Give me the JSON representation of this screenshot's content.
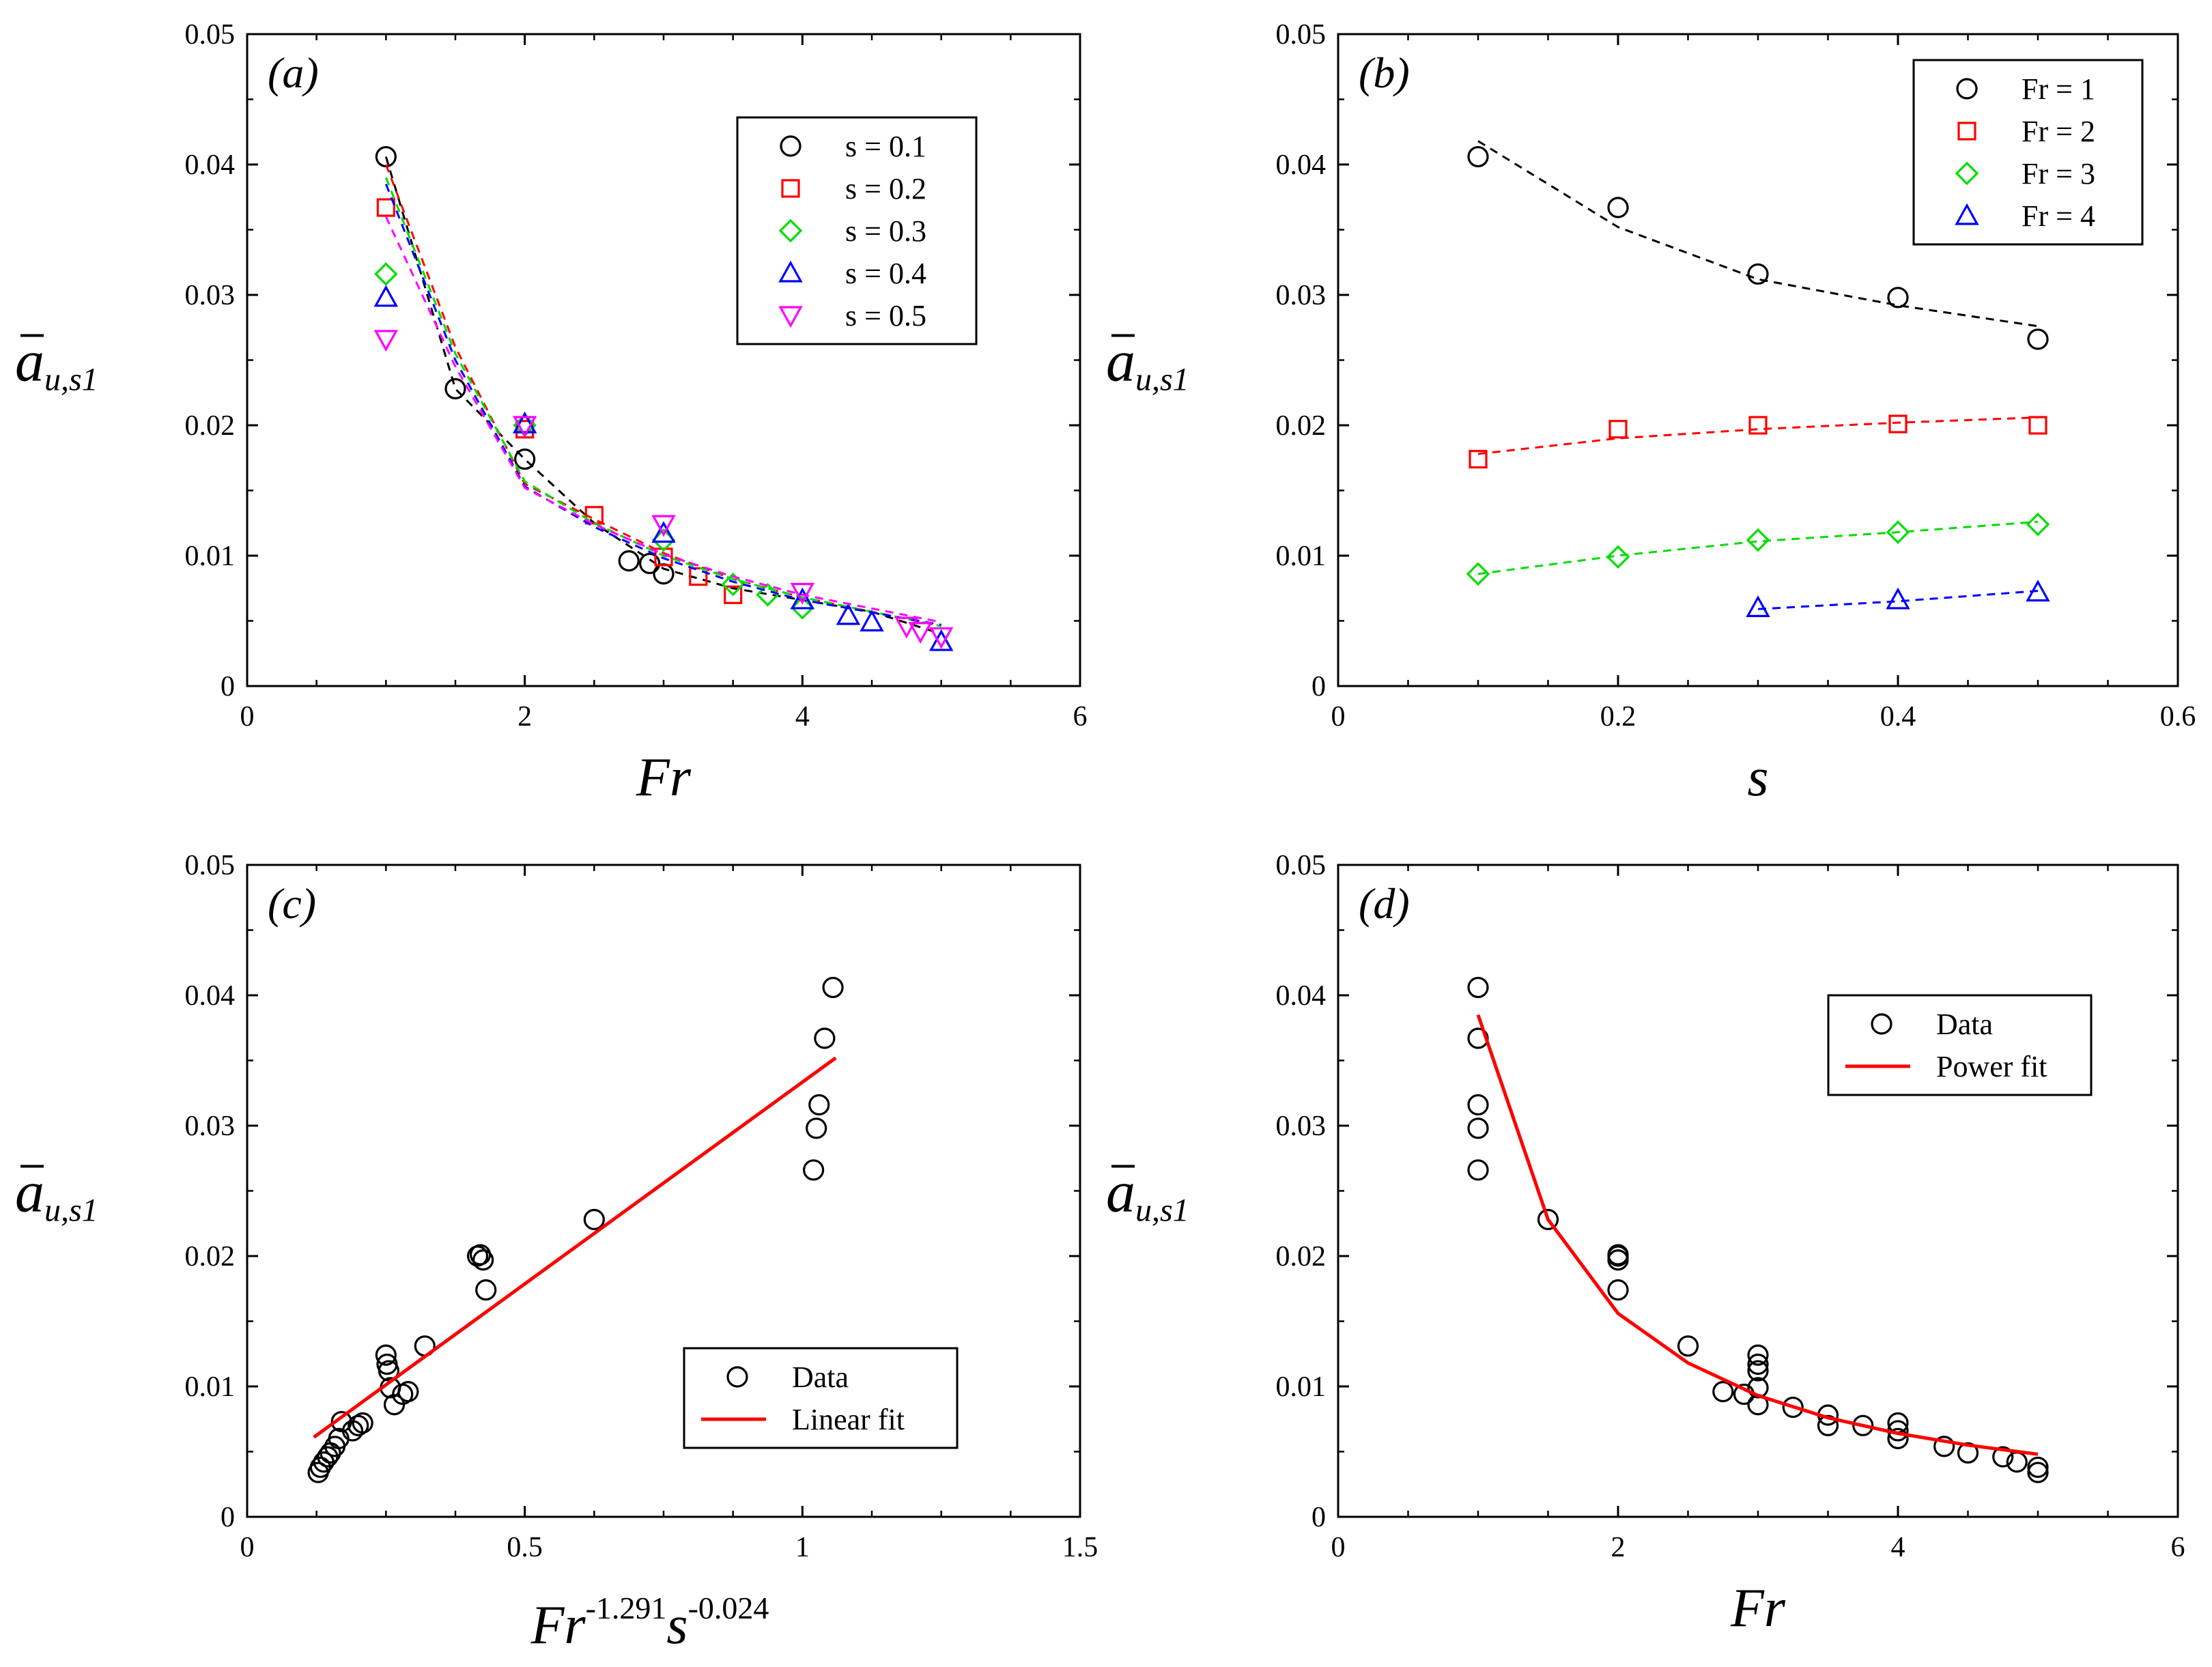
{
  "figure": {
    "panel_labels": [
      "(a)",
      "(b)",
      "(c)",
      "(d)"
    ],
    "ylabel_main": "a",
    "ylabel_sub": "u,s1"
  },
  "colors": {
    "black": "#000000",
    "red": "#ff0000",
    "green": "#00dd00",
    "blue": "#0000ff",
    "magenta": "#ff00ff"
  },
  "chart_data": [
    {
      "id": "a",
      "type": "scatter",
      "title": "(a)",
      "xlabel": "Fr",
      "ylabel": "ā u,s1",
      "xlim": [
        0,
        6
      ],
      "ylim": [
        0,
        0.05
      ],
      "xticks": [
        0,
        2,
        4,
        6
      ],
      "xtick_labels": [
        "0",
        "2",
        "4",
        "6"
      ],
      "yticks": [
        0,
        0.01,
        0.02,
        0.03,
        0.04,
        0.05
      ],
      "ytick_labels": [
        "0",
        "0.01",
        "0.02",
        "0.03",
        "0.04",
        "0.05"
      ],
      "legend_position": "top-right",
      "series": [
        {
          "name": "s = 0.1",
          "marker": "circle",
          "color": "#000000",
          "points": [
            [
              1,
              0.0406
            ],
            [
              1.5,
              0.0228
            ],
            [
              2,
              0.0174
            ],
            [
              2.75,
              0.0096
            ],
            [
              2.9,
              0.0094
            ],
            [
              3,
              0.0086
            ]
          ],
          "fit": [
            [
              1,
              0.0406
            ],
            [
              1.5,
              0.0228
            ],
            [
              2,
              0.0174
            ],
            [
              2.5,
              0.0125
            ],
            [
              3,
              0.009
            ],
            [
              3.5,
              0.0075
            ],
            [
              4,
              0.0066
            ],
            [
              4.5,
              0.0057
            ],
            [
              5,
              0.004
            ]
          ]
        },
        {
          "name": "s = 0.2",
          "marker": "square",
          "color": "#ff0000",
          "points": [
            [
              1,
              0.0367
            ],
            [
              2,
              0.0197
            ],
            [
              2.5,
              0.0131
            ],
            [
              3,
              0.0099
            ],
            [
              3.25,
              0.0084
            ],
            [
              3.5,
              0.007
            ]
          ],
          "fit": [
            [
              1,
              0.04
            ],
            [
              1.5,
              0.026
            ],
            [
              2,
              0.0155
            ],
            [
              2.5,
              0.0128
            ],
            [
              3,
              0.0102
            ],
            [
              3.5,
              0.0082
            ],
            [
              4,
              0.0068
            ],
            [
              5,
              0.0046
            ]
          ]
        },
        {
          "name": "s = 0.3",
          "marker": "diamond",
          "color": "#00dd00",
          "points": [
            [
              1,
              0.0316
            ],
            [
              2,
              0.02
            ],
            [
              3,
              0.0112
            ],
            [
              3.5,
              0.0078
            ],
            [
              3.75,
              0.007
            ],
            [
              4,
              0.006
            ]
          ],
          "fit": [
            [
              1,
              0.039
            ],
            [
              1.5,
              0.0255
            ],
            [
              2,
              0.0157
            ],
            [
              2.5,
              0.0125
            ],
            [
              3,
              0.01
            ],
            [
              3.5,
              0.0082
            ],
            [
              4,
              0.0068
            ],
            [
              5,
              0.0046
            ]
          ]
        },
        {
          "name": "s = 0.4",
          "marker": "triangle-up",
          "color": "#0000ff",
          "points": [
            [
              1,
              0.0298
            ],
            [
              2,
              0.0201
            ],
            [
              3,
              0.0117
            ],
            [
              4,
              0.0066
            ],
            [
              4.33,
              0.0054
            ],
            [
              4.5,
              0.0049
            ],
            [
              5,
              0.0034
            ]
          ],
          "fit": [
            [
              1,
              0.0385
            ],
            [
              1.5,
              0.025
            ],
            [
              2,
              0.0153
            ],
            [
              2.5,
              0.0122
            ],
            [
              3,
              0.0098
            ],
            [
              3.5,
              0.008
            ],
            [
              4,
              0.0066
            ],
            [
              5,
              0.0047
            ]
          ]
        },
        {
          "name": "s = 0.5",
          "marker": "triangle-down",
          "color": "#ff00ff",
          "points": [
            [
              1,
              0.0266
            ],
            [
              2,
              0.02
            ],
            [
              3,
              0.0124
            ],
            [
              4,
              0.0072
            ],
            [
              4.75,
              0.0046
            ],
            [
              4.85,
              0.0042
            ],
            [
              5,
              0.0038
            ]
          ],
          "fit": [
            [
              1,
              0.036
            ],
            [
              1.5,
              0.0245
            ],
            [
              2,
              0.0152
            ],
            [
              2.5,
              0.0124
            ],
            [
              3,
              0.0101
            ],
            [
              3.5,
              0.0084
            ],
            [
              4,
              0.007
            ],
            [
              5,
              0.0049
            ]
          ]
        }
      ]
    },
    {
      "id": "b",
      "type": "scatter",
      "title": "(b)",
      "xlabel": "s",
      "ylabel": "ā u,s1",
      "xlim": [
        0,
        0.6
      ],
      "ylim": [
        0,
        0.05
      ],
      "xticks": [
        0,
        0.2,
        0.4,
        0.6
      ],
      "xtick_labels": [
        "0",
        "0.2",
        "0.4",
        "0.6"
      ],
      "yticks": [
        0,
        0.01,
        0.02,
        0.03,
        0.04,
        0.05
      ],
      "ytick_labels": [
        "0",
        "0.01",
        "0.02",
        "0.03",
        "0.04",
        "0.05"
      ],
      "legend_position": "top-right",
      "series": [
        {
          "name": "Fr = 1",
          "marker": "circle",
          "color": "#000000",
          "points": [
            [
              0.1,
              0.0406
            ],
            [
              0.2,
              0.0367
            ],
            [
              0.3,
              0.0316
            ],
            [
              0.4,
              0.0298
            ],
            [
              0.5,
              0.0266
            ]
          ],
          "fit": [
            [
              0.1,
              0.0418
            ],
            [
              0.2,
              0.0352
            ],
            [
              0.3,
              0.0312
            ],
            [
              0.4,
              0.0292
            ],
            [
              0.5,
              0.0276
            ]
          ]
        },
        {
          "name": "Fr = 2",
          "marker": "square",
          "color": "#ff0000",
          "points": [
            [
              0.1,
              0.0174
            ],
            [
              0.2,
              0.0197
            ],
            [
              0.3,
              0.02
            ],
            [
              0.4,
              0.0201
            ],
            [
              0.5,
              0.02
            ]
          ],
          "fit": [
            [
              0.1,
              0.0178
            ],
            [
              0.2,
              0.019
            ],
            [
              0.3,
              0.0197
            ],
            [
              0.4,
              0.0202
            ],
            [
              0.5,
              0.0206
            ]
          ]
        },
        {
          "name": "Fr = 3",
          "marker": "diamond",
          "color": "#00dd00",
          "points": [
            [
              0.1,
              0.0086
            ],
            [
              0.2,
              0.0099
            ],
            [
              0.3,
              0.0112
            ],
            [
              0.4,
              0.0118
            ],
            [
              0.5,
              0.0124
            ]
          ],
          "fit": [
            [
              0.1,
              0.0086
            ],
            [
              0.2,
              0.01
            ],
            [
              0.3,
              0.0111
            ],
            [
              0.4,
              0.0118
            ],
            [
              0.5,
              0.0126
            ]
          ]
        },
        {
          "name": "Fr = 4",
          "marker": "triangle-up",
          "color": "#0000ff",
          "points": [
            [
              0.3,
              0.006
            ],
            [
              0.4,
              0.0066
            ],
            [
              0.5,
              0.0072
            ]
          ],
          "fit": [
            [
              0.3,
              0.0059
            ],
            [
              0.4,
              0.0065
            ],
            [
              0.5,
              0.0073
            ]
          ]
        }
      ]
    },
    {
      "id": "c",
      "type": "scatter",
      "title": "(c)",
      "xlabel": "Fr",
      "xlabel_sup1": "-1.291",
      "xlabel_mid": "s",
      "xlabel_sup2": "-0.024",
      "ylabel": "ā u,s1",
      "xlim": [
        0,
        1.5
      ],
      "ylim": [
        0,
        0.05
      ],
      "xticks": [
        0,
        0.5,
        1,
        1.5
      ],
      "xtick_labels": [
        "0",
        "0.5",
        "1",
        "1.5"
      ],
      "yticks": [
        0,
        0.01,
        0.02,
        0.03,
        0.04,
        0.05
      ],
      "ytick_labels": [
        "0",
        "0.01",
        "0.02",
        "0.03",
        "0.04",
        "0.05"
      ],
      "legend_position": "bottom-right",
      "series": [
        {
          "name": "Data",
          "marker": "circle",
          "color": "#000000",
          "points": [
            [
              1.055,
              0.0406
            ],
            [
              1.04,
              0.0367
            ],
            [
              1.03,
              0.0316
            ],
            [
              1.025,
              0.0298
            ],
            [
              1.02,
              0.0266
            ],
            [
              0.625,
              0.0228
            ],
            [
              0.42,
              0.0201
            ],
            [
              0.415,
              0.02
            ],
            [
              0.425,
              0.0197
            ],
            [
              0.43,
              0.0174
            ],
            [
              0.32,
              0.0131
            ],
            [
              0.25,
              0.0124
            ],
            [
              0.252,
              0.0117
            ],
            [
              0.255,
              0.0112
            ],
            [
              0.258,
              0.0099
            ],
            [
              0.29,
              0.0096
            ],
            [
              0.28,
              0.0094
            ],
            [
              0.265,
              0.0086
            ],
            [
              0.208,
              0.0072
            ],
            [
              0.2,
              0.007
            ],
            [
              0.19,
              0.0066
            ],
            [
              0.17,
              0.0073
            ],
            [
              0.165,
              0.006
            ],
            [
              0.158,
              0.0054
            ],
            [
              0.15,
              0.0049
            ],
            [
              0.145,
              0.0046
            ],
            [
              0.138,
              0.0042
            ],
            [
              0.132,
              0.0038
            ],
            [
              0.128,
              0.0034
            ]
          ]
        },
        {
          "name": "Linear fit",
          "marker": "line",
          "color": "#ff0000",
          "points": [
            [
              0.12,
              0.0061
            ],
            [
              1.06,
              0.0352
            ]
          ]
        }
      ]
    },
    {
      "id": "d",
      "type": "scatter",
      "title": "(d)",
      "xlabel": "Fr",
      "ylabel": "ā u,s1",
      "xlim": [
        0,
        6
      ],
      "ylim": [
        0,
        0.05
      ],
      "xticks": [
        0,
        2,
        4,
        6
      ],
      "xtick_labels": [
        "0",
        "2",
        "4",
        "6"
      ],
      "yticks": [
        0,
        0.01,
        0.02,
        0.03,
        0.04,
        0.05
      ],
      "ytick_labels": [
        "0",
        "0.01",
        "0.02",
        "0.03",
        "0.04",
        "0.05"
      ],
      "legend_position": "top-right",
      "series": [
        {
          "name": "Data",
          "marker": "circle",
          "color": "#000000",
          "points": [
            [
              1,
              0.0406
            ],
            [
              1,
              0.0367
            ],
            [
              1,
              0.0316
            ],
            [
              1,
              0.0298
            ],
            [
              1,
              0.0266
            ],
            [
              1.5,
              0.0228
            ],
            [
              2,
              0.0201
            ],
            [
              2,
              0.02
            ],
            [
              2,
              0.0197
            ],
            [
              2,
              0.0174
            ],
            [
              2.5,
              0.0131
            ],
            [
              2.75,
              0.0096
            ],
            [
              2.9,
              0.0094
            ],
            [
              3,
              0.0124
            ],
            [
              3,
              0.0117
            ],
            [
              3,
              0.0112
            ],
            [
              3,
              0.0099
            ],
            [
              3,
              0.0086
            ],
            [
              3.25,
              0.0084
            ],
            [
              3.5,
              0.0078
            ],
            [
              3.5,
              0.007
            ],
            [
              3.75,
              0.007
            ],
            [
              4,
              0.0072
            ],
            [
              4,
              0.0066
            ],
            [
              4,
              0.006
            ],
            [
              4.33,
              0.0054
            ],
            [
              4.5,
              0.0049
            ],
            [
              4.75,
              0.0046
            ],
            [
              4.85,
              0.0042
            ],
            [
              5,
              0.0038
            ],
            [
              5,
              0.0034
            ]
          ]
        },
        {
          "name": "Power fit",
          "marker": "line",
          "color": "#ff0000",
          "points": [
            [
              1,
              0.0385
            ],
            [
              1.5,
              0.0228
            ],
            [
              2,
              0.0156
            ],
            [
              2.5,
              0.0118
            ],
            [
              3,
              0.0093
            ],
            [
              3.5,
              0.0076
            ],
            [
              4,
              0.0064
            ],
            [
              4.5,
              0.0055
            ],
            [
              5,
              0.0048
            ]
          ]
        }
      ]
    }
  ]
}
